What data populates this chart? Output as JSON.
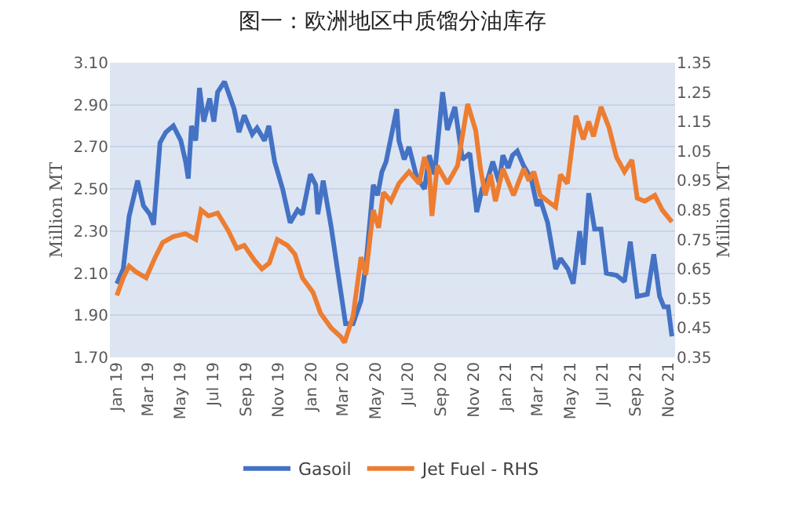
{
  "chart_data": {
    "type": "line",
    "title": "图一：欧洲地区中质馏分油库存",
    "ylabel": "Million MT",
    "y2label": "Million MT",
    "xlim": [
      "2018-12-20",
      "2021-11-14"
    ],
    "xticks": [
      {
        "value": "2019-01-01",
        "label": "Jan 19"
      },
      {
        "value": "2019-03-01",
        "label": "Mar 19"
      },
      {
        "value": "2019-05-01",
        "label": "May 19"
      },
      {
        "value": "2019-07-01",
        "label": "Jul 19"
      },
      {
        "value": "2019-09-01",
        "label": "Sep 19"
      },
      {
        "value": "2019-11-01",
        "label": "Nov 19"
      },
      {
        "value": "2020-01-01",
        "label": "Jan 20"
      },
      {
        "value": "2020-03-01",
        "label": "Mar 20"
      },
      {
        "value": "2020-05-01",
        "label": "May 20"
      },
      {
        "value": "2020-07-01",
        "label": "Jul 20"
      },
      {
        "value": "2020-09-01",
        "label": "Sep 20"
      },
      {
        "value": "2020-11-01",
        "label": "Nov 20"
      },
      {
        "value": "2021-01-01",
        "label": "Jan 21"
      },
      {
        "value": "2021-03-01",
        "label": "Mar 21"
      },
      {
        "value": "2021-05-01",
        "label": "May 21"
      },
      {
        "value": "2021-07-01",
        "label": "Jul 21"
      },
      {
        "value": "2021-09-01",
        "label": "Sep 21"
      },
      {
        "value": "2021-11-01",
        "label": "Nov 21"
      }
    ],
    "ylim": [
      1.7,
      3.1
    ],
    "yticks": [
      {
        "value": 1.7,
        "label": "1.70"
      },
      {
        "value": 1.9,
        "label": "1.90"
      },
      {
        "value": 2.1,
        "label": "2.10"
      },
      {
        "value": 2.3,
        "label": "2.30"
      },
      {
        "value": 2.5,
        "label": "2.50"
      },
      {
        "value": 2.7,
        "label": "2.70"
      },
      {
        "value": 2.9,
        "label": "2.90"
      },
      {
        "value": 3.1,
        "label": "3.10"
      }
    ],
    "y2lim": [
      0.35,
      1.35
    ],
    "y2ticks": [
      0.35,
      0.45,
      0.55,
      0.65,
      0.75,
      0.85,
      0.95,
      1.05,
      1.15,
      1.25,
      1.35
    ],
    "grid": "y",
    "legend": "bottom",
    "line_style": "solid",
    "marker": "none",
    "series": [
      {
        "name": "Gasoil",
        "color": "#4472c4",
        "x": [
          "2019-01-02",
          "2019-01-14",
          "2019-01-25",
          "2019-02-10",
          "2019-02-21",
          "2019-03-05",
          "2019-03-12",
          "2019-03-24",
          "2019-04-04",
          "2019-04-18",
          "2019-05-02",
          "2019-05-11",
          "2019-05-16",
          "2019-05-22",
          "2019-05-30",
          "2019-06-06",
          "2019-06-14",
          "2019-06-25",
          "2019-07-03",
          "2019-07-10",
          "2019-07-23",
          "2019-08-10",
          "2019-08-19",
          "2019-08-29",
          "2019-09-13",
          "2019-09-22",
          "2019-10-06",
          "2019-10-14",
          "2019-10-25",
          "2019-11-09",
          "2019-11-23",
          "2019-12-07",
          "2019-12-16",
          "2019-12-31",
          "2020-01-10",
          "2020-01-14",
          "2020-01-24",
          "2020-02-08",
          "2020-02-19",
          "2020-03-06",
          "2020-03-20",
          "2020-04-04",
          "2020-04-13",
          "2020-04-27",
          "2020-05-05",
          "2020-05-13",
          "2020-05-21",
          "2020-06-10",
          "2020-06-14",
          "2020-06-24",
          "2020-07-03",
          "2020-07-17",
          "2020-08-01",
          "2020-08-10",
          "2020-08-20",
          "2020-09-04",
          "2020-09-13",
          "2020-09-27",
          "2020-10-11",
          "2020-10-25",
          "2020-11-07",
          "2020-11-17",
          "2020-11-28",
          "2020-12-07",
          "2020-12-19",
          "2020-12-26",
          "2021-01-05",
          "2021-01-13",
          "2021-01-22",
          "2021-02-03",
          "2021-02-17",
          "2021-02-28",
          "2021-03-06",
          "2021-03-20",
          "2021-04-04",
          "2021-04-13",
          "2021-04-27",
          "2021-05-07",
          "2021-05-19",
          "2021-05-26",
          "2021-06-05",
          "2021-06-16",
          "2021-06-28",
          "2021-07-08",
          "2021-07-27",
          "2021-08-11",
          "2021-08-22",
          "2021-09-04",
          "2021-09-23",
          "2021-10-05",
          "2021-10-16",
          "2021-10-24",
          "2021-11-01",
          "2021-11-08"
        ],
        "values": [
          2.05,
          2.12,
          2.37,
          2.54,
          2.42,
          2.38,
          2.33,
          2.72,
          2.77,
          2.8,
          2.73,
          2.63,
          2.55,
          2.8,
          2.73,
          2.98,
          2.82,
          2.93,
          2.82,
          2.96,
          3.01,
          2.88,
          2.77,
          2.85,
          2.76,
          2.79,
          2.73,
          2.8,
          2.63,
          2.5,
          2.34,
          2.4,
          2.38,
          2.57,
          2.52,
          2.38,
          2.54,
          2.32,
          2.13,
          1.86,
          1.86,
          1.97,
          2.14,
          2.52,
          2.47,
          2.58,
          2.63,
          2.88,
          2.73,
          2.64,
          2.7,
          2.56,
          2.5,
          2.66,
          2.57,
          2.96,
          2.78,
          2.89,
          2.64,
          2.67,
          2.39,
          2.5,
          2.55,
          2.63,
          2.53,
          2.66,
          2.6,
          2.66,
          2.68,
          2.61,
          2.55,
          2.42,
          2.45,
          2.34,
          2.12,
          2.17,
          2.12,
          2.05,
          2.3,
          2.14,
          2.48,
          2.31,
          2.31,
          2.1,
          2.09,
          2.06,
          2.25,
          1.99,
          2.0,
          2.19,
          1.99,
          1.94,
          1.94,
          1.8
        ]
      },
      {
        "name": "Jet Fuel - RHS",
        "color": "#ed7d31",
        "axis": "y2",
        "x": [
          "2019-01-02",
          "2019-01-14",
          "2019-01-25",
          "2019-02-07",
          "2019-02-26",
          "2019-03-15",
          "2019-03-29",
          "2019-04-18",
          "2019-05-11",
          "2019-05-30",
          "2019-06-09",
          "2019-06-23",
          "2019-07-10",
          "2019-07-30",
          "2019-08-15",
          "2019-08-29",
          "2019-09-17",
          "2019-10-01",
          "2019-10-15",
          "2019-10-30",
          "2019-11-18",
          "2019-12-02",
          "2019-12-16",
          "2020-01-05",
          "2020-01-19",
          "2020-02-08",
          "2020-02-26",
          "2020-03-04",
          "2020-03-20",
          "2020-04-04",
          "2020-04-13",
          "2020-04-27",
          "2020-05-07",
          "2020-05-16",
          "2020-05-30",
          "2020-06-14",
          "2020-07-03",
          "2020-07-22",
          "2020-08-01",
          "2020-08-10",
          "2020-08-15",
          "2020-08-25",
          "2020-09-13",
          "2020-10-02",
          "2020-10-21",
          "2020-11-05",
          "2020-11-14",
          "2020-11-23",
          "2020-12-03",
          "2020-12-12",
          "2020-12-26",
          "2021-01-15",
          "2021-02-03",
          "2021-02-13",
          "2021-02-22",
          "2021-03-06",
          "2021-03-20",
          "2021-04-04",
          "2021-04-13",
          "2021-04-26",
          "2021-05-12",
          "2021-05-26",
          "2021-06-05",
          "2021-06-14",
          "2021-06-28",
          "2021-07-13",
          "2021-07-27",
          "2021-08-11",
          "2021-08-25",
          "2021-09-04",
          "2021-09-18",
          "2021-10-07",
          "2021-10-21",
          "2021-11-08"
        ],
        "values": [
          0.56,
          0.62,
          0.66,
          0.64,
          0.62,
          0.69,
          0.74,
          0.76,
          0.77,
          0.75,
          0.85,
          0.83,
          0.84,
          0.78,
          0.72,
          0.73,
          0.68,
          0.65,
          0.67,
          0.75,
          0.73,
          0.7,
          0.62,
          0.57,
          0.5,
          0.45,
          0.42,
          0.4,
          0.49,
          0.69,
          0.63,
          0.85,
          0.79,
          0.91,
          0.88,
          0.94,
          0.98,
          0.94,
          1.03,
          0.98,
          0.83,
          1.0,
          0.94,
          1.0,
          1.21,
          1.12,
          0.99,
          0.9,
          0.97,
          0.88,
          0.99,
          0.9,
          0.99,
          0.95,
          0.98,
          0.9,
          0.88,
          0.86,
          0.97,
          0.94,
          1.17,
          1.09,
          1.15,
          1.1,
          1.2,
          1.13,
          1.03,
          0.98,
          1.02,
          0.89,
          0.88,
          0.9,
          0.85,
          0.81
        ]
      }
    ]
  }
}
